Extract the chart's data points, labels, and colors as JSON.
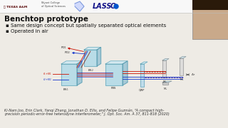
{
  "bg_color": "#f0ede8",
  "title": "Benchtop prototype",
  "bullets": [
    "Same design concept but spatially separated optical elements",
    "Operated in air"
  ],
  "citation_line1": "Ki-Nam Joo, Erin Clark, Yanqi Zhang, Jonathan D. Ellis, and Felipe Guzmán, “A compact high-",
  "citation_line2": "precision periodic-error-free heterodyne interferometer,” J. Opt. Soc. Am. A 37, 811-818 (2020)",
  "title_fontsize": 7.5,
  "bullet_fontsize": 5.0,
  "citation_fontsize": 3.5,
  "slide_bg": "#eeebe5",
  "header_bg": "#f8f8f8",
  "text_color": "#111111",
  "cube_color": "#a8d8e8",
  "cube_edge": "#5599aa",
  "beam_red": "#cc1100",
  "beam_blue": "#1133cc",
  "beam_darkblue": "#220088",
  "beam_darkred": "#881100"
}
